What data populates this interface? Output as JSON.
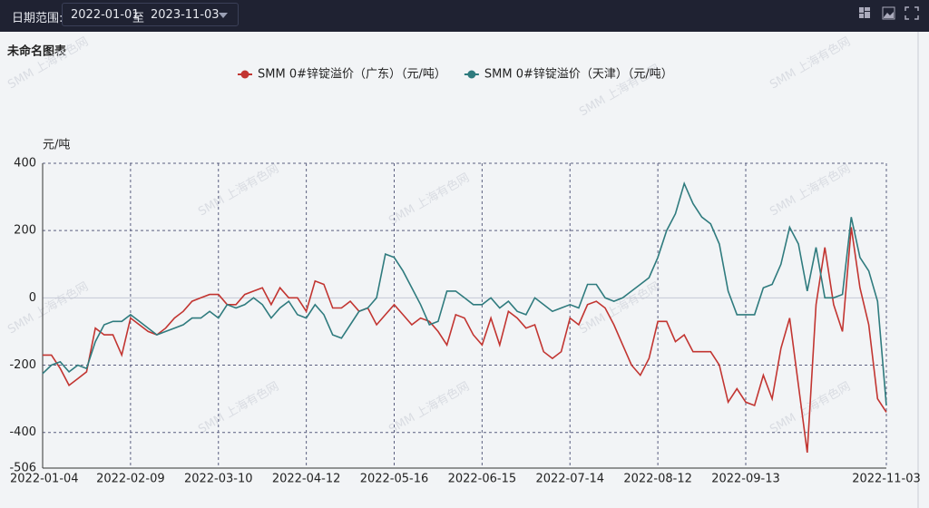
{
  "toolbar": {
    "label": "日期范围:",
    "start": "2022-01-01",
    "separator": "至",
    "end": "2023-11-03"
  },
  "watermark": "SMM 上海有色网",
  "chart_data": {
    "type": "line",
    "title": "未命名图表",
    "y_label": "元/吨",
    "categories": [
      "2022-01-04",
      null,
      null,
      null,
      null,
      null,
      null,
      null,
      null,
      null,
      "2022-02-09",
      null,
      null,
      null,
      null,
      null,
      null,
      null,
      null,
      null,
      "2022-03-10",
      null,
      null,
      null,
      null,
      null,
      null,
      null,
      null,
      null,
      "2022-04-12",
      null,
      null,
      null,
      null,
      null,
      null,
      null,
      null,
      null,
      "2022-05-16",
      null,
      null,
      null,
      null,
      null,
      null,
      null,
      null,
      null,
      "2022-06-15",
      null,
      null,
      null,
      null,
      null,
      null,
      null,
      null,
      null,
      "2022-07-14",
      null,
      null,
      null,
      null,
      null,
      null,
      null,
      null,
      null,
      "2022-08-12",
      null,
      null,
      null,
      null,
      null,
      null,
      null,
      null,
      null,
      "2022-09-13",
      null,
      null,
      null,
      null,
      null,
      null,
      null,
      null,
      null,
      null,
      null,
      null,
      null,
      null,
      null,
      "2022-11-03"
    ],
    "series": [
      {
        "name": "SMM 0#锌锭溢价（广东）（元/吨）",
        "color": "#c23531",
        "values": [
          -170,
          -170,
          -210,
          -260,
          -240,
          -220,
          -90,
          -110,
          -110,
          -170,
          -60,
          -80,
          -100,
          -110,
          -90,
          -60,
          -40,
          -10,
          0,
          10,
          10,
          -20,
          -20,
          10,
          20,
          30,
          -20,
          30,
          0,
          0,
          -40,
          50,
          40,
          -30,
          -30,
          -10,
          -40,
          -30,
          -80,
          -50,
          -20,
          -50,
          -80,
          -60,
          -70,
          -100,
          -140,
          -50,
          -60,
          -110,
          -140,
          -60,
          -140,
          -40,
          -60,
          -90,
          -80,
          -160,
          -180,
          -160,
          -60,
          -80,
          -20,
          -10,
          -30,
          -80,
          -140,
          -200,
          -230,
          -180,
          -70,
          -70,
          -130,
          -110,
          -160,
          -160,
          -160,
          -200,
          -310,
          -270,
          -310,
          -320,
          -230,
          -300,
          -150,
          -60,
          -260,
          -460,
          -20,
          150,
          -20,
          -100,
          210,
          30,
          -80,
          -300,
          -340
        ]
      },
      {
        "name": "SMM 0#锌锭溢价（天津）（元/吨）",
        "color": "#2f7b7e",
        "values": [
          -225,
          -200,
          -190,
          -220,
          -200,
          -210,
          -130,
          -80,
          -70,
          -70,
          -50,
          -70,
          -90,
          -110,
          -100,
          -90,
          -80,
          -60,
          -60,
          -40,
          -60,
          -20,
          -30,
          -20,
          0,
          -20,
          -60,
          -30,
          -10,
          -50,
          -60,
          -20,
          -50,
          -110,
          -120,
          -80,
          -40,
          -30,
          0,
          130,
          120,
          80,
          30,
          -20,
          -80,
          -70,
          20,
          20,
          0,
          -20,
          -20,
          0,
          -30,
          -10,
          -40,
          -50,
          0,
          -20,
          -40,
          -30,
          -20,
          -30,
          40,
          40,
          0,
          -10,
          0,
          20,
          40,
          60,
          120,
          200,
          250,
          340,
          280,
          240,
          220,
          160,
          20,
          -50,
          -50,
          -50,
          30,
          40,
          100,
          210,
          160,
          20,
          150,
          0,
          0,
          10,
          240,
          120,
          80,
          -10,
          -320
        ]
      }
    ],
    "ylim": [
      -506,
      400
    ],
    "yticks": [
      400,
      200,
      0,
      -200,
      -400,
      -506
    ],
    "grid": true,
    "legend": "top"
  }
}
